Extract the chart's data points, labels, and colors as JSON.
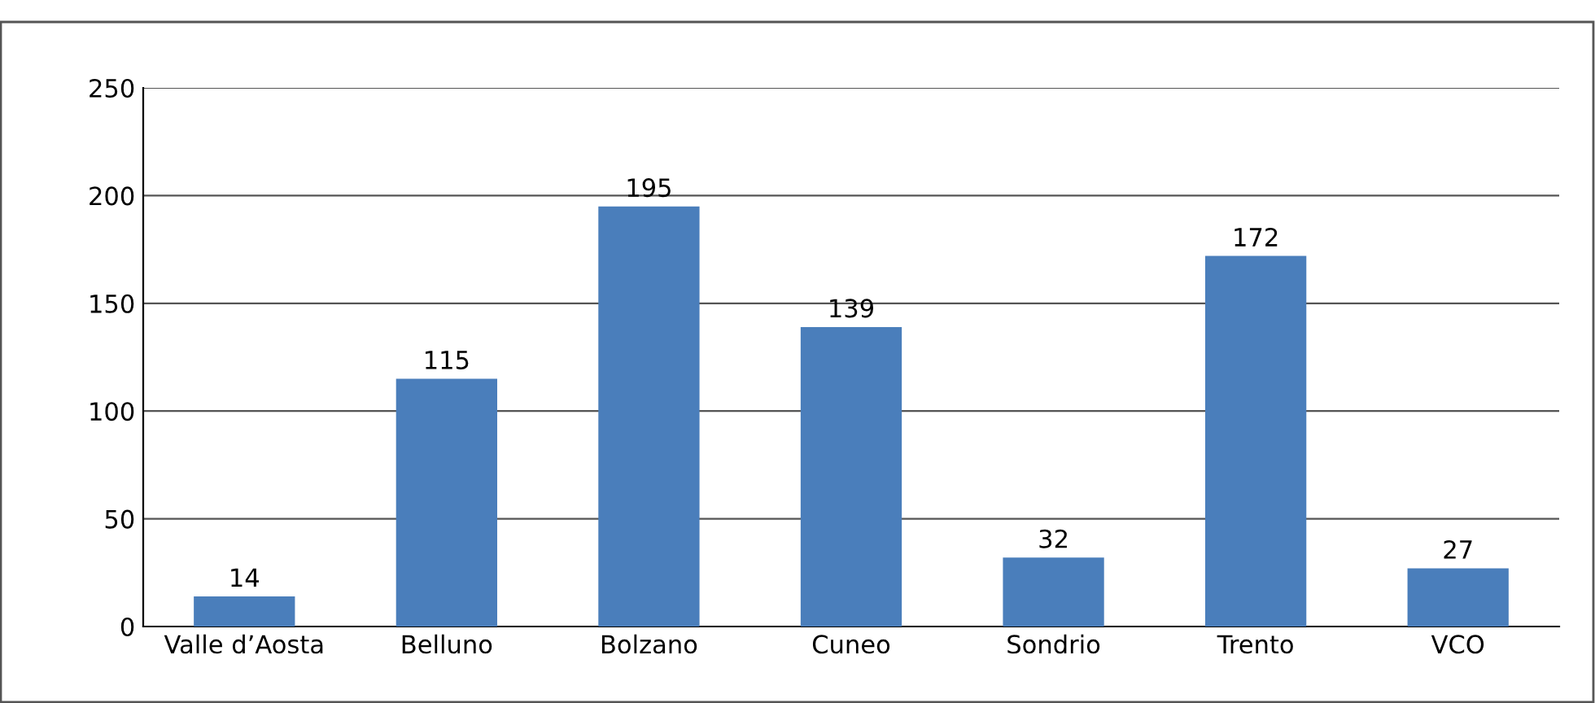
{
  "chart_data": {
    "type": "bar",
    "categories": [
      "Valle d’Aosta",
      "Belluno",
      "Bolzano",
      "Cuneo",
      "Sondrio",
      "Trento",
      "VCO"
    ],
    "values": [
      14,
      115,
      195,
      139,
      32,
      172,
      27
    ],
    "color": "#4a7ebb",
    "ylim": [
      0,
      250
    ],
    "yticks": [
      0,
      50,
      100,
      150,
      200,
      250
    ],
    "grid": "y",
    "data_labels": true
  }
}
